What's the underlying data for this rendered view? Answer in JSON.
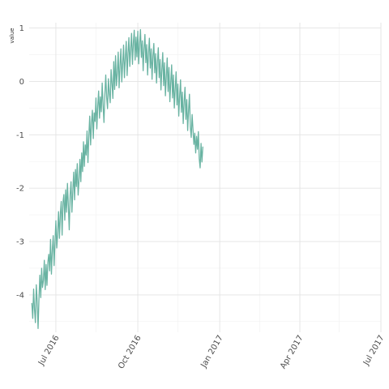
{
  "chart_data": {
    "type": "line",
    "title": "",
    "xlabel": "",
    "ylabel": "value",
    "grid": true,
    "legend": "none",
    "x_range": [
      "2016-06-01",
      "2017-07-01"
    ],
    "ylim": [
      -4.7,
      1.1
    ],
    "y_ticks": [
      {
        "value": 1,
        "label": "1"
      },
      {
        "value": 0,
        "label": "0"
      },
      {
        "value": -1,
        "label": "-1"
      },
      {
        "value": -2,
        "label": "-2"
      },
      {
        "value": -3,
        "label": "-3"
      },
      {
        "value": -4,
        "label": "-4"
      }
    ],
    "x_ticks": [
      {
        "date": "2016-07-01",
        "label": "Jul 2016"
      },
      {
        "date": "2016-10-01",
        "label": "Oct 2016"
      },
      {
        "date": "2017-01-01",
        "label": "Jan 2017"
      },
      {
        "date": "2017-04-01",
        "label": "Apr 2017"
      },
      {
        "date": "2017-07-01",
        "label": "Jul 2017"
      }
    ],
    "x_minor_ticks": [
      "2016-08-15",
      "2016-11-15",
      "2017-02-15",
      "2017-05-15"
    ],
    "series": [
      {
        "color": "#69b3a2",
        "x_start": "2016-06-04",
        "interval_days": 1,
        "values": [
          -4.16,
          -4.44,
          -3.89,
          -4.27,
          -4.52,
          -3.81,
          -4.13,
          -4.63,
          -4.07,
          -3.63,
          -4.05,
          -3.5,
          -3.86,
          -3.73,
          -3.35,
          -3.9,
          -3.43,
          -3.82,
          -3.39,
          -3.24,
          -3.55,
          -2.96,
          -3.61,
          -3.16,
          -2.89,
          -3.45,
          -3.01,
          -2.61,
          -3.12,
          -2.85,
          -2.44,
          -2.94,
          -2.49,
          -2.25,
          -2.88,
          -2.26,
          -2.12,
          -2.6,
          -2.03,
          -2.45,
          -1.91,
          -2.32,
          -2.78,
          -2.13,
          -1.88,
          -2.45,
          -2.05,
          -1.7,
          -2.22,
          -1.65,
          -1.97,
          -1.54,
          -2.13,
          -1.84,
          -1.46,
          -1.88,
          -1.34,
          -1.69,
          -1.13,
          -1.59,
          -1.19,
          -1.38,
          -0.93,
          -1.52,
          -1.02,
          -0.65,
          -1.19,
          -0.77,
          -0.54,
          -1.07,
          -0.59,
          -0.75,
          -0.31,
          -0.89,
          -0.47,
          -0.18,
          -0.69,
          -0.29,
          -0.57,
          -0.03,
          -0.44,
          -0.77,
          -0.25,
          0.12,
          -0.3,
          -0.51,
          0.05,
          -0.23,
          -0.4,
          0.22,
          -0.04,
          -0.32,
          0.37,
          -0.15,
          0.48,
          -0.08,
          0.16,
          0.55,
          -0.12,
          0.29,
          0.61,
          -0.01,
          0.33,
          0.68,
          0.07,
          0.44,
          0.75,
          0.11,
          0.52,
          0.82,
          0.28,
          0.61,
          0.9,
          0.32,
          0.71,
          0.96,
          0.4,
          0.83,
          0.46,
          0.94,
          0.33,
          0.71,
          0.97,
          0.45,
          0.76,
          0.2,
          0.62,
          0.88,
          0.35,
          0.69,
          0.12,
          0.53,
          0.81,
          0.25,
          0.61,
          0.04,
          0.48,
          0.71,
          0.16,
          0.52,
          -0.03,
          0.36,
          0.63,
          0.07,
          0.41,
          -0.16,
          0.22,
          0.54,
          -0.08,
          0.35,
          -0.27,
          0.09,
          0.44,
          -0.19,
          0.26,
          -0.38,
          -0.02,
          0.31,
          -0.31,
          0.12,
          -0.5,
          -0.14,
          0.18,
          -0.44,
          -0.05,
          -0.65,
          -0.27,
          0.03,
          -0.58,
          -0.2,
          -0.79,
          -0.39,
          -0.11,
          -0.71,
          -0.34,
          -0.92,
          -0.55,
          -0.24,
          -0.86,
          -1.05,
          -0.62,
          -0.91,
          -1.18,
          -0.97,
          -1.34,
          -1.03,
          -1.27,
          -0.94,
          -1.45,
          -1.62,
          -1.16,
          -1.51,
          -1.23
        ]
      }
    ]
  }
}
